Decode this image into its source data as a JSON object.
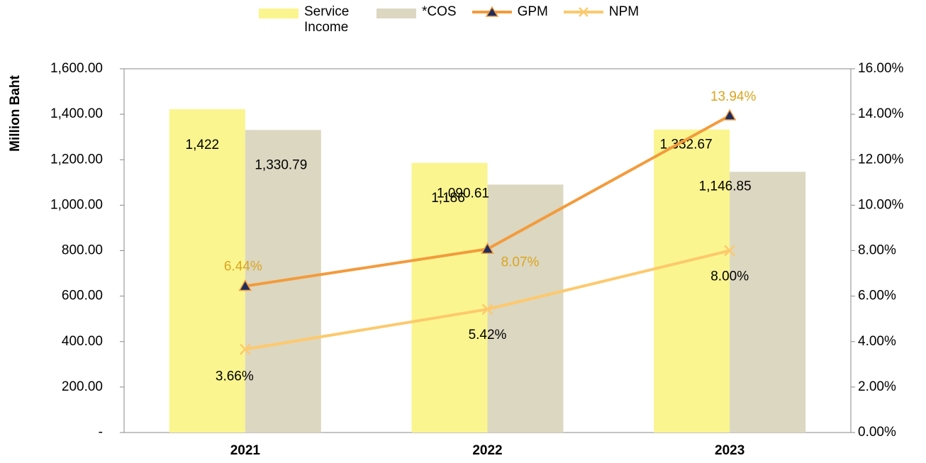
{
  "chart_data": {
    "type": "bar",
    "y_label": "Million Baht",
    "categories": [
      "2021",
      "2022",
      "2023"
    ],
    "series": [
      {
        "name": "Service Income",
        "type": "bar",
        "color": "#faf58f",
        "values": [
          1422,
          1186,
          1332.67
        ],
        "value_labels": [
          "1,422",
          "1,186",
          "1,332.67"
        ]
      },
      {
        "name": "*COS",
        "type": "bar",
        "color": "#dcd7c1",
        "values": [
          1330.79,
          1090.61,
          1146.85
        ],
        "value_labels": [
          "1,330.79",
          "1,090.61",
          "1,146.85"
        ]
      },
      {
        "name": "GPM",
        "type": "line",
        "axis": "y2",
        "color": "#f39b3c",
        "marker": "triangle",
        "marker_color": "#1f2d5c",
        "label_color": "#d9a520",
        "values": [
          6.44,
          8.07,
          13.94
        ],
        "value_labels": [
          "6.44%",
          "8.07%",
          "13.94%"
        ]
      },
      {
        "name": "NPM",
        "type": "line",
        "axis": "y2",
        "color": "#fdc96c",
        "marker": "x",
        "label_color": "#000000",
        "values": [
          3.66,
          5.42,
          8.0
        ],
        "value_labels": [
          "3.66%",
          "5.42%",
          "8.00%"
        ]
      }
    ],
    "ylim": [
      0,
      1600
    ],
    "yticks": [
      {
        "value": 0,
        "label": "-"
      },
      {
        "value": 200,
        "label": "200.00"
      },
      {
        "value": 400,
        "label": "400.00"
      },
      {
        "value": 600,
        "label": "600.00"
      },
      {
        "value": 800,
        "label": "800.00"
      },
      {
        "value": 1000,
        "label": "1,000.00"
      },
      {
        "value": 1200,
        "label": "1,200.00"
      },
      {
        "value": 1400,
        "label": "1,400.00"
      },
      {
        "value": 1600,
        "label": "1,600.00"
      }
    ],
    "y2lim": [
      0,
      16
    ],
    "y2ticks": [
      {
        "value": 0,
        "label": "0.00%"
      },
      {
        "value": 2,
        "label": "2.00%"
      },
      {
        "value": 4,
        "label": "4.00%"
      },
      {
        "value": 6,
        "label": "6.00%"
      },
      {
        "value": 8,
        "label": "8.00%"
      },
      {
        "value": 10,
        "label": "10.00%"
      },
      {
        "value": 12,
        "label": "12.00%"
      },
      {
        "value": 14,
        "label": "14.00%"
      },
      {
        "value": 16,
        "label": "16.00%"
      }
    ],
    "grid": false
  }
}
